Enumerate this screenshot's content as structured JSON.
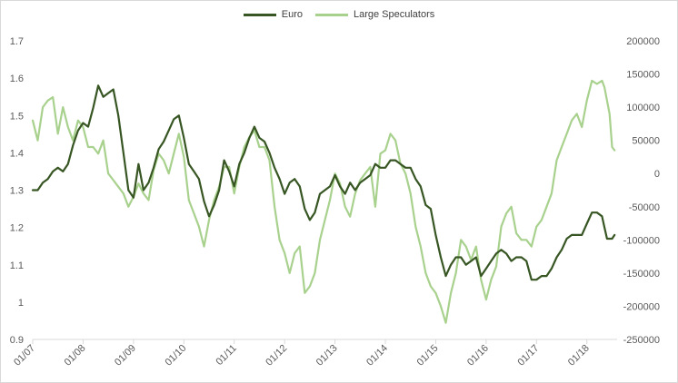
{
  "chart_data": {
    "type": "line",
    "title": "",
    "xlabel": "",
    "ylabel": "",
    "legend_position": "top-center",
    "grid": false,
    "left_axis": {
      "min": 0.9,
      "max": 1.7,
      "ticks": [
        "0.9",
        "1",
        "1.1",
        "1.2",
        "1.3",
        "1.4",
        "1.5",
        "1.6",
        "1.7"
      ]
    },
    "right_axis": {
      "min": -250000,
      "max": 200000,
      "ticks": [
        "-250000",
        "-200000",
        "-150000",
        "-100000",
        "-50000",
        "0",
        "50000",
        "100000",
        "150000",
        "200000"
      ]
    },
    "x_axis": {
      "min": 2007.0,
      "max": 2018.6,
      "ticks": [
        "01/07",
        "01/08",
        "01/09",
        "01/10",
        "01/11",
        "01/12",
        "01/13",
        "01/14",
        "01/15",
        "01/16",
        "01/17",
        "01/18"
      ]
    },
    "series": [
      {
        "name": "Euro",
        "axis": "left",
        "color": "#375623",
        "points": [
          [
            2007.0,
            1.3
          ],
          [
            2007.1,
            1.3
          ],
          [
            2007.2,
            1.32
          ],
          [
            2007.3,
            1.33
          ],
          [
            2007.4,
            1.35
          ],
          [
            2007.5,
            1.36
          ],
          [
            2007.6,
            1.35
          ],
          [
            2007.7,
            1.37
          ],
          [
            2007.8,
            1.42
          ],
          [
            2007.9,
            1.46
          ],
          [
            2008.0,
            1.48
          ],
          [
            2008.1,
            1.47
          ],
          [
            2008.2,
            1.52
          ],
          [
            2008.3,
            1.58
          ],
          [
            2008.4,
            1.55
          ],
          [
            2008.5,
            1.56
          ],
          [
            2008.6,
            1.57
          ],
          [
            2008.7,
            1.5
          ],
          [
            2008.8,
            1.4
          ],
          [
            2008.9,
            1.3
          ],
          [
            2009.0,
            1.28
          ],
          [
            2009.1,
            1.37
          ],
          [
            2009.2,
            1.3
          ],
          [
            2009.3,
            1.32
          ],
          [
            2009.4,
            1.36
          ],
          [
            2009.5,
            1.41
          ],
          [
            2009.6,
            1.43
          ],
          [
            2009.7,
            1.46
          ],
          [
            2009.8,
            1.49
          ],
          [
            2009.9,
            1.5
          ],
          [
            2010.0,
            1.44
          ],
          [
            2010.1,
            1.37
          ],
          [
            2010.2,
            1.35
          ],
          [
            2010.3,
            1.33
          ],
          [
            2010.4,
            1.27
          ],
          [
            2010.5,
            1.23
          ],
          [
            2010.6,
            1.26
          ],
          [
            2010.7,
            1.3
          ],
          [
            2010.8,
            1.38
          ],
          [
            2010.9,
            1.35
          ],
          [
            2011.0,
            1.31
          ],
          [
            2011.1,
            1.37
          ],
          [
            2011.2,
            1.4
          ],
          [
            2011.3,
            1.44
          ],
          [
            2011.4,
            1.47
          ],
          [
            2011.5,
            1.44
          ],
          [
            2011.6,
            1.43
          ],
          [
            2011.7,
            1.4
          ],
          [
            2011.8,
            1.36
          ],
          [
            2011.9,
            1.33
          ],
          [
            2012.0,
            1.29
          ],
          [
            2012.1,
            1.32
          ],
          [
            2012.2,
            1.33
          ],
          [
            2012.3,
            1.31
          ],
          [
            2012.4,
            1.25
          ],
          [
            2012.5,
            1.22
          ],
          [
            2012.6,
            1.24
          ],
          [
            2012.7,
            1.29
          ],
          [
            2012.8,
            1.3
          ],
          [
            2012.9,
            1.31
          ],
          [
            2013.0,
            1.34
          ],
          [
            2013.1,
            1.31
          ],
          [
            2013.2,
            1.29
          ],
          [
            2013.3,
            1.32
          ],
          [
            2013.4,
            1.3
          ],
          [
            2013.5,
            1.32
          ],
          [
            2013.6,
            1.33
          ],
          [
            2013.7,
            1.34
          ],
          [
            2013.8,
            1.37
          ],
          [
            2013.9,
            1.36
          ],
          [
            2014.0,
            1.36
          ],
          [
            2014.1,
            1.38
          ],
          [
            2014.2,
            1.38
          ],
          [
            2014.3,
            1.37
          ],
          [
            2014.4,
            1.36
          ],
          [
            2014.5,
            1.36
          ],
          [
            2014.6,
            1.33
          ],
          [
            2014.7,
            1.31
          ],
          [
            2014.8,
            1.26
          ],
          [
            2014.9,
            1.25
          ],
          [
            2015.0,
            1.18
          ],
          [
            2015.1,
            1.12
          ],
          [
            2015.2,
            1.07
          ],
          [
            2015.3,
            1.1
          ],
          [
            2015.4,
            1.12
          ],
          [
            2015.5,
            1.12
          ],
          [
            2015.6,
            1.1
          ],
          [
            2015.7,
            1.11
          ],
          [
            2015.8,
            1.12
          ],
          [
            2015.9,
            1.07
          ],
          [
            2016.0,
            1.09
          ],
          [
            2016.1,
            1.11
          ],
          [
            2016.2,
            1.13
          ],
          [
            2016.3,
            1.14
          ],
          [
            2016.4,
            1.13
          ],
          [
            2016.5,
            1.11
          ],
          [
            2016.6,
            1.12
          ],
          [
            2016.7,
            1.12
          ],
          [
            2016.8,
            1.11
          ],
          [
            2016.9,
            1.06
          ],
          [
            2017.0,
            1.06
          ],
          [
            2017.1,
            1.07
          ],
          [
            2017.2,
            1.07
          ],
          [
            2017.3,
            1.09
          ],
          [
            2017.4,
            1.12
          ],
          [
            2017.5,
            1.14
          ],
          [
            2017.6,
            1.17
          ],
          [
            2017.7,
            1.18
          ],
          [
            2017.8,
            1.18
          ],
          [
            2017.9,
            1.18
          ],
          [
            2018.0,
            1.21
          ],
          [
            2018.1,
            1.24
          ],
          [
            2018.2,
            1.24
          ],
          [
            2018.3,
            1.23
          ],
          [
            2018.35,
            1.2
          ],
          [
            2018.4,
            1.17
          ],
          [
            2018.5,
            1.17
          ],
          [
            2018.55,
            1.18
          ]
        ]
      },
      {
        "name": "Large Speculators",
        "axis": "right",
        "color": "#a9d18e",
        "points": [
          [
            2007.0,
            80000
          ],
          [
            2007.1,
            50000
          ],
          [
            2007.2,
            100000
          ],
          [
            2007.3,
            110000
          ],
          [
            2007.4,
            115000
          ],
          [
            2007.5,
            60000
          ],
          [
            2007.6,
            100000
          ],
          [
            2007.7,
            70000
          ],
          [
            2007.8,
            50000
          ],
          [
            2007.9,
            80000
          ],
          [
            2008.0,
            70000
          ],
          [
            2008.1,
            40000
          ],
          [
            2008.2,
            40000
          ],
          [
            2008.3,
            30000
          ],
          [
            2008.4,
            50000
          ],
          [
            2008.5,
            0
          ],
          [
            2008.6,
            -10000
          ],
          [
            2008.7,
            -20000
          ],
          [
            2008.8,
            -30000
          ],
          [
            2008.9,
            -50000
          ],
          [
            2009.0,
            -35000
          ],
          [
            2009.1,
            -15000
          ],
          [
            2009.2,
            -30000
          ],
          [
            2009.3,
            -40000
          ],
          [
            2009.4,
            5000
          ],
          [
            2009.5,
            30000
          ],
          [
            2009.6,
            20000
          ],
          [
            2009.7,
            0
          ],
          [
            2009.8,
            30000
          ],
          [
            2009.9,
            60000
          ],
          [
            2010.0,
            25000
          ],
          [
            2010.1,
            -40000
          ],
          [
            2010.2,
            -60000
          ],
          [
            2010.3,
            -80000
          ],
          [
            2010.4,
            -110000
          ],
          [
            2010.5,
            -70000
          ],
          [
            2010.6,
            -40000
          ],
          [
            2010.7,
            -20000
          ],
          [
            2010.8,
            10000
          ],
          [
            2010.9,
            10000
          ],
          [
            2011.0,
            -30000
          ],
          [
            2011.1,
            10000
          ],
          [
            2011.2,
            40000
          ],
          [
            2011.3,
            55000
          ],
          [
            2011.4,
            65000
          ],
          [
            2011.5,
            40000
          ],
          [
            2011.6,
            40000
          ],
          [
            2011.7,
            20000
          ],
          [
            2011.8,
            -50000
          ],
          [
            2011.9,
            -100000
          ],
          [
            2012.0,
            -120000
          ],
          [
            2012.1,
            -150000
          ],
          [
            2012.2,
            -120000
          ],
          [
            2012.3,
            -110000
          ],
          [
            2012.4,
            -180000
          ],
          [
            2012.5,
            -170000
          ],
          [
            2012.6,
            -150000
          ],
          [
            2012.7,
            -100000
          ],
          [
            2012.8,
            -70000
          ],
          [
            2012.9,
            -40000
          ],
          [
            2013.0,
            0
          ],
          [
            2013.1,
            -15000
          ],
          [
            2013.2,
            -50000
          ],
          [
            2013.3,
            -65000
          ],
          [
            2013.4,
            -30000
          ],
          [
            2013.5,
            -10000
          ],
          [
            2013.6,
            0
          ],
          [
            2013.7,
            10000
          ],
          [
            2013.8,
            -50000
          ],
          [
            2013.9,
            30000
          ],
          [
            2014.0,
            35000
          ],
          [
            2014.1,
            60000
          ],
          [
            2014.2,
            50000
          ],
          [
            2014.3,
            15000
          ],
          [
            2014.4,
            0
          ],
          [
            2014.5,
            -30000
          ],
          [
            2014.6,
            -80000
          ],
          [
            2014.7,
            -110000
          ],
          [
            2014.8,
            -150000
          ],
          [
            2014.9,
            -170000
          ],
          [
            2015.0,
            -180000
          ],
          [
            2015.1,
            -200000
          ],
          [
            2015.2,
            -225000
          ],
          [
            2015.3,
            -180000
          ],
          [
            2015.4,
            -150000
          ],
          [
            2015.5,
            -100000
          ],
          [
            2015.6,
            -110000
          ],
          [
            2015.7,
            -130000
          ],
          [
            2015.8,
            -110000
          ],
          [
            2015.9,
            -160000
          ],
          [
            2016.0,
            -190000
          ],
          [
            2016.1,
            -160000
          ],
          [
            2016.2,
            -140000
          ],
          [
            2016.3,
            -80000
          ],
          [
            2016.4,
            -60000
          ],
          [
            2016.5,
            -50000
          ],
          [
            2016.6,
            -90000
          ],
          [
            2016.7,
            -100000
          ],
          [
            2016.8,
            -100000
          ],
          [
            2016.9,
            -110000
          ],
          [
            2017.0,
            -80000
          ],
          [
            2017.1,
            -70000
          ],
          [
            2017.2,
            -50000
          ],
          [
            2017.3,
            -30000
          ],
          [
            2017.4,
            20000
          ],
          [
            2017.5,
            40000
          ],
          [
            2017.6,
            60000
          ],
          [
            2017.7,
            80000
          ],
          [
            2017.8,
            90000
          ],
          [
            2017.9,
            70000
          ],
          [
            2018.0,
            110000
          ],
          [
            2018.1,
            140000
          ],
          [
            2018.2,
            135000
          ],
          [
            2018.3,
            140000
          ],
          [
            2018.35,
            130000
          ],
          [
            2018.4,
            110000
          ],
          [
            2018.45,
            90000
          ],
          [
            2018.5,
            40000
          ],
          [
            2018.55,
            35000
          ]
        ]
      }
    ]
  }
}
